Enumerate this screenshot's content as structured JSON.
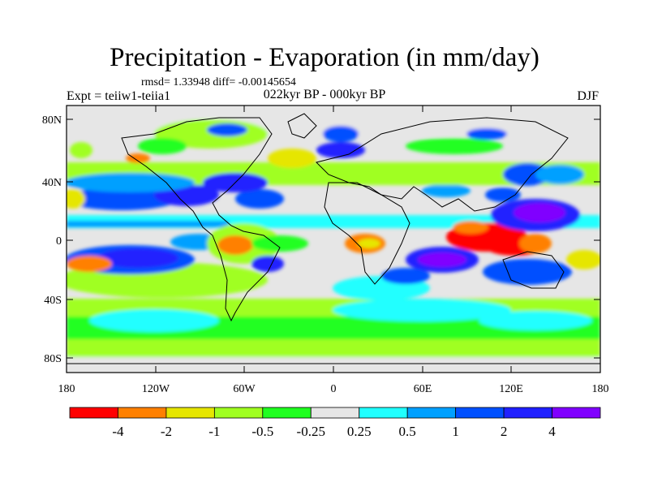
{
  "title": "Precipitation - Evaporation (in mm/day)",
  "stats_line": "rmsd= 1.33948 diff= -0.00145654",
  "experiment": "Expt = teiiw1-teiia1",
  "difference": "022kyr BP - 000kyr BP",
  "season": "DJF",
  "colorbar": {
    "colors": [
      "#ff0000",
      "#ff8000",
      "#e6e600",
      "#a0ff20",
      "#20ff20",
      "#e6e6e6",
      "#20ffff",
      "#00a0ff",
      "#0050ff",
      "#2020ff",
      "#8000ff"
    ],
    "labels": [
      "-4",
      "-2",
      "-1",
      "-0.5",
      "-0.25",
      "0.25",
      "0.5",
      "1",
      "2",
      "4"
    ]
  },
  "map": {
    "lat_ticks": [
      "80N",
      "40N",
      "0",
      "40S",
      "80S"
    ],
    "lon_ticks": [
      "180",
      "120W",
      "60W",
      "0",
      "60E",
      "120E",
      "180"
    ],
    "lon_range": [
      -180,
      180
    ],
    "lat_range": [
      -90,
      90
    ]
  }
}
